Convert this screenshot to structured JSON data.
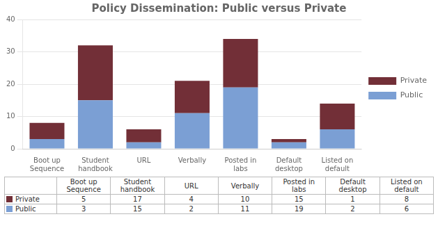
{
  "chart_data": {
    "type": "bar",
    "title": "Policy Dissemination: Public versus Private",
    "categories": [
      "Boot up\nSequence",
      "Student\nhandbook",
      "URL",
      "Verbally",
      "Posted in\nlabs",
      "Default\ndesktop",
      "Listed on\ndefault"
    ],
    "series": [
      {
        "name": "Public",
        "color": "#7B9FD4",
        "values": [
          3,
          15,
          2,
          11,
          19,
          2,
          6
        ]
      },
      {
        "name": "Private",
        "color": "#722F37",
        "values": [
          5,
          17,
          4,
          10,
          15,
          1,
          8
        ]
      }
    ],
    "stacked": true,
    "ylim": [
      0,
      40
    ],
    "yticks": [
      0,
      10,
      20,
      30,
      40
    ],
    "grid": true,
    "legend": "right"
  }
}
